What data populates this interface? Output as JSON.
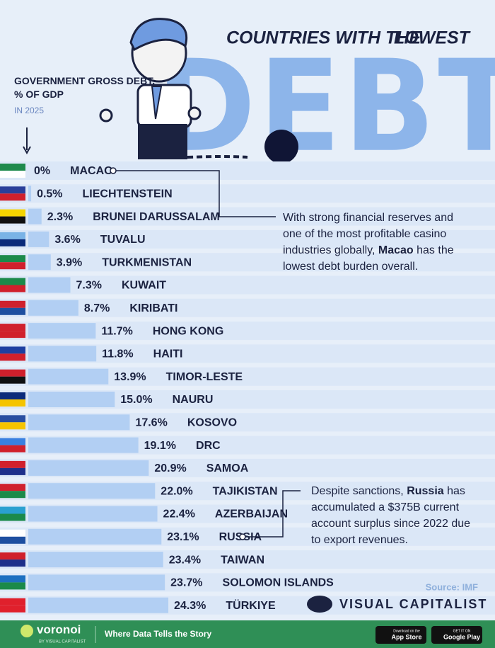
{
  "chart_data": {
    "type": "bar",
    "title": [
      "COUNTRIES WITH THE",
      "LOWEST",
      "DEBT"
    ],
    "subtitle": "GOVERNMENT GROSS DEBT, % OF GDP",
    "period": "IN 2025",
    "categories": [
      "MACAO",
      "LIECHTENSTEIN",
      "BRUNEI DARUSSALAM",
      "TUVALU",
      "TURKMENISTAN",
      "KUWAIT",
      "KIRIBATI",
      "HONG KONG",
      "HAITI",
      "TIMOR-LESTE",
      "NAURU",
      "KOSOVO",
      "DRC",
      "SAMOA",
      "TAJIKISTAN",
      "AZERBAIJAN",
      "RUSSIA",
      "TAIWAN",
      "SOLOMON ISLANDS",
      "TÜRKIYE"
    ],
    "values": [
      0,
      0.5,
      2.3,
      3.6,
      3.9,
      7.3,
      8.7,
      11.7,
      11.8,
      13.9,
      15.0,
      17.6,
      19.1,
      20.9,
      22.0,
      22.4,
      23.1,
      23.4,
      23.7,
      24.3
    ],
    "value_labels": [
      "0%",
      "0.5%",
      "2.3%",
      "3.6%",
      "3.9%",
      "7.3%",
      "8.7%",
      "11.7%",
      "11.8%",
      "13.9%",
      "15.0%",
      "17.6%",
      "19.1%",
      "20.9%",
      "22.0%",
      "22.4%",
      "23.1%",
      "23.4%",
      "23.7%",
      "24.3%"
    ],
    "color": "#b2cff3",
    "annotations": [
      [
        "With strong financial reserves and one of the most profitable casino industries globally, ",
        "Macao",
        " has the lowest debt burden overall."
      ],
      [
        "Despite sanctions, ",
        "Russia",
        " has accumulated a $375B current account surplus since 2022 due to export revenues."
      ]
    ],
    "source": "Source: IMF",
    "brand": "VISUAL CAPITALIST",
    "footer": {
      "logo": "voronoi",
      "logo_sub": "BY VISUAL CAPITALIST",
      "tagline": "Where Data Tells the Story",
      "app_store": [
        "Download on the",
        "App Store"
      ],
      "google_play": [
        "GET IT ON",
        "Google Play"
      ]
    }
  }
}
